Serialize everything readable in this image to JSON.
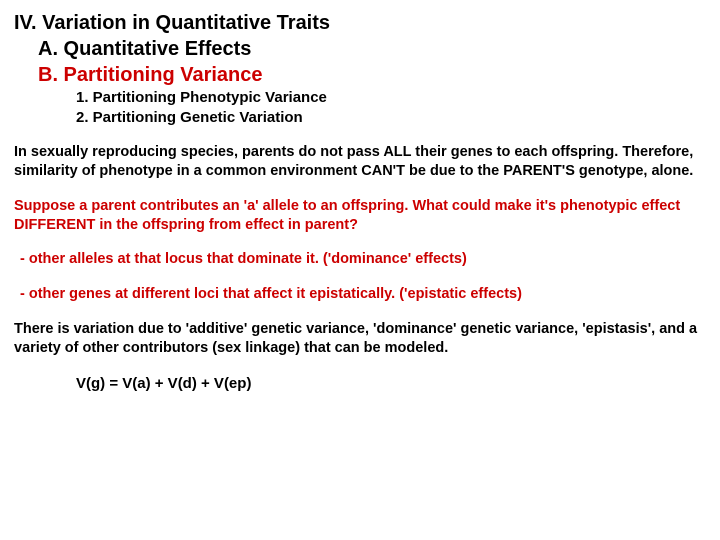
{
  "colors": {
    "text_black": "#000000",
    "text_red": "#cc0000",
    "background": "#ffffff"
  },
  "typography": {
    "heading_fontsize": 20,
    "body_fontsize": 14.5,
    "numbered_fontsize": 15,
    "font_family": "Arial, Helvetica, sans-serif",
    "all_bold": true
  },
  "headings": {
    "main": "IV. Variation in Quantitative Traits",
    "subA": "A. Quantitative Effects",
    "subB": "B. Partitioning Variance"
  },
  "numbered": {
    "item1": "1. Partitioning Phenotypic Variance",
    "item2": "2. Partitioning Genetic Variation"
  },
  "paragraphs": {
    "p1": "In sexually reproducing species, parents do not pass ALL their genes to each offspring.  Therefore, similarity of phenotype in a common environment CAN'T be due to the PARENT'S genotype, alone.",
    "p2": "Suppose a parent contributes an 'a' allele to an offspring.  What could make it's phenotypic effect DIFFERENT in the offspring from effect in parent?",
    "point1": "- other alleles at that locus that dominate it. ('dominance' effects)",
    "point2": "- other genes at different loci that affect it epistatically. ('epistatic effects)",
    "p3": "There is variation due to 'additive' genetic variance, 'dominance' genetic variance, 'epistasis', and a variety of other contributors (sex linkage) that can be modeled."
  },
  "equation": "V(g) = V(a) + V(d) + V(ep)"
}
